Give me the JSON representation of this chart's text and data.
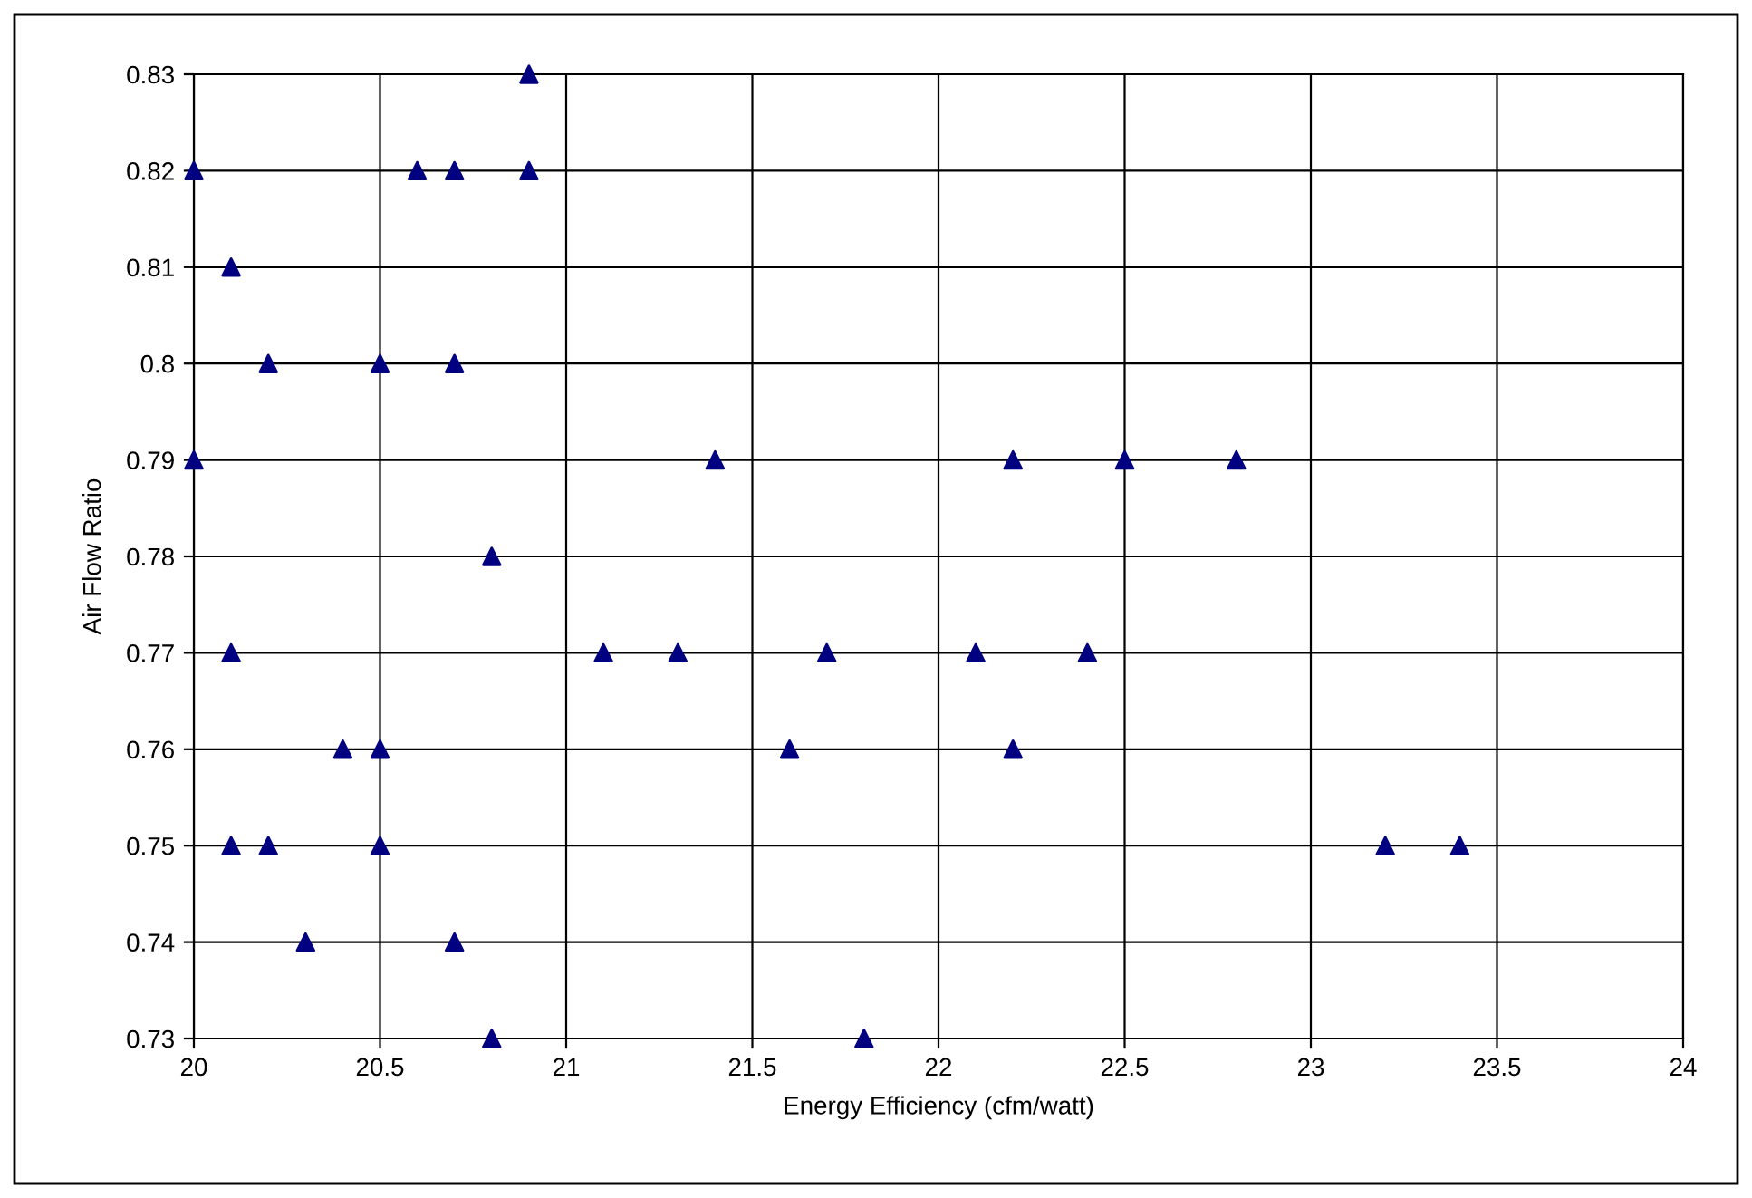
{
  "chart_data": {
    "type": "scatter",
    "xlabel": "Energy Efficiency (cfm/watt)",
    "ylabel": "Air Flow Ratio",
    "series": [
      {
        "color": "#000080",
        "x": [
          20.0,
          20.1,
          20.2,
          20.0,
          20.1,
          20.1,
          20.2,
          20.3,
          20.4,
          20.5,
          20.5,
          20.5,
          20.6,
          20.7,
          20.7,
          20.7,
          20.8,
          20.8,
          20.9,
          20.9,
          21.1,
          21.3,
          21.4,
          21.6,
          21.7,
          21.8,
          22.1,
          22.2,
          22.2,
          22.4,
          22.5,
          22.8,
          23.2,
          23.4
        ],
        "values": [
          0.82,
          0.81,
          0.8,
          0.79,
          0.77,
          0.75,
          0.75,
          0.74,
          0.76,
          0.76,
          0.75,
          0.8,
          0.82,
          0.82,
          0.8,
          0.74,
          0.78,
          0.73,
          0.83,
          0.82,
          0.77,
          0.77,
          0.79,
          0.76,
          0.77,
          0.73,
          0.77,
          0.79,
          0.76,
          0.77,
          0.79,
          0.79,
          0.75,
          0.75
        ]
      }
    ],
    "xlim": [
      20,
      24
    ],
    "xticks": [
      20,
      20.5,
      21,
      21.5,
      22,
      22.5,
      23,
      23.5,
      24
    ],
    "ylim": [
      0.73,
      0.83
    ],
    "yticks": [
      0.73,
      0.74,
      0.75,
      0.76,
      0.77,
      0.78,
      0.79,
      0.8,
      0.81,
      0.82,
      0.83
    ],
    "grid": true,
    "marker": "triangle",
    "legend": false
  }
}
